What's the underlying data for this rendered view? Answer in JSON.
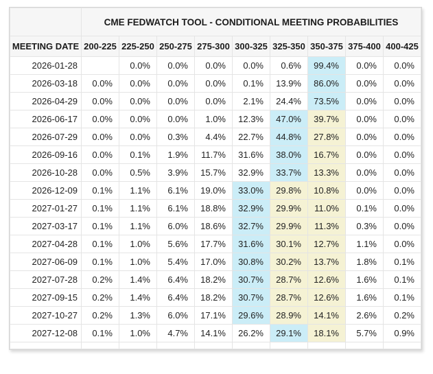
{
  "chart_data": {
    "type": "table",
    "title": "CME FEDWATCH TOOL - CONDITIONAL MEETING PROBABILITIES",
    "row_header": "MEETING DATE",
    "columns": [
      "200-225",
      "225-250",
      "250-275",
      "275-300",
      "300-325",
      "325-350",
      "350-375",
      "375-400",
      "400-425"
    ],
    "rows": [
      {
        "date": "2026-01-28",
        "values": [
          "",
          "0.0%",
          "0.0%",
          "0.0%",
          "0.0%",
          "0.6%",
          "99.4%",
          "0.0%",
          "0.0%"
        ],
        "highlights": [
          "",
          "",
          "",
          "",
          "",
          "",
          "b",
          "",
          ""
        ]
      },
      {
        "date": "2026-03-18",
        "values": [
          "0.0%",
          "0.0%",
          "0.0%",
          "0.0%",
          "0.1%",
          "13.9%",
          "86.0%",
          "0.0%",
          "0.0%"
        ],
        "highlights": [
          "",
          "",
          "",
          "",
          "",
          "",
          "b",
          "",
          ""
        ]
      },
      {
        "date": "2026-04-29",
        "values": [
          "0.0%",
          "0.0%",
          "0.0%",
          "0.0%",
          "2.1%",
          "24.4%",
          "73.5%",
          "0.0%",
          "0.0%"
        ],
        "highlights": [
          "",
          "",
          "",
          "",
          "",
          "",
          "b",
          "",
          ""
        ]
      },
      {
        "date": "2026-06-17",
        "values": [
          "0.0%",
          "0.0%",
          "0.0%",
          "1.0%",
          "12.3%",
          "47.0%",
          "39.7%",
          "0.0%",
          "0.0%"
        ],
        "highlights": [
          "",
          "",
          "",
          "",
          "",
          "b",
          "y",
          "",
          ""
        ]
      },
      {
        "date": "2026-07-29",
        "values": [
          "0.0%",
          "0.0%",
          "0.3%",
          "4.4%",
          "22.7%",
          "44.8%",
          "27.8%",
          "0.0%",
          "0.0%"
        ],
        "highlights": [
          "",
          "",
          "",
          "",
          "",
          "b",
          "y",
          "",
          ""
        ]
      },
      {
        "date": "2026-09-16",
        "values": [
          "0.0%",
          "0.1%",
          "1.9%",
          "11.7%",
          "31.6%",
          "38.0%",
          "16.7%",
          "0.0%",
          "0.0%"
        ],
        "highlights": [
          "",
          "",
          "",
          "",
          "",
          "b",
          "y",
          "",
          ""
        ]
      },
      {
        "date": "2026-10-28",
        "values": [
          "0.0%",
          "0.5%",
          "3.9%",
          "15.7%",
          "32.9%",
          "33.7%",
          "13.3%",
          "0.0%",
          "0.0%"
        ],
        "highlights": [
          "",
          "",
          "",
          "",
          "",
          "b",
          "y",
          "",
          ""
        ]
      },
      {
        "date": "2026-12-09",
        "values": [
          "0.1%",
          "1.1%",
          "6.1%",
          "19.0%",
          "33.0%",
          "29.8%",
          "10.8%",
          "0.0%",
          "0.0%"
        ],
        "highlights": [
          "",
          "",
          "",
          "",
          "b",
          "y",
          "y",
          "",
          ""
        ]
      },
      {
        "date": "2027-01-27",
        "values": [
          "0.1%",
          "1.1%",
          "6.1%",
          "18.8%",
          "32.9%",
          "29.9%",
          "11.0%",
          "0.1%",
          "0.0%"
        ],
        "highlights": [
          "",
          "",
          "",
          "",
          "b",
          "y",
          "y",
          "",
          ""
        ]
      },
      {
        "date": "2027-03-17",
        "values": [
          "0.1%",
          "1.1%",
          "6.0%",
          "18.6%",
          "32.7%",
          "29.9%",
          "11.3%",
          "0.3%",
          "0.0%"
        ],
        "highlights": [
          "",
          "",
          "",
          "",
          "b",
          "y",
          "y",
          "",
          ""
        ]
      },
      {
        "date": "2027-04-28",
        "values": [
          "0.1%",
          "1.0%",
          "5.6%",
          "17.7%",
          "31.6%",
          "30.1%",
          "12.7%",
          "1.1%",
          "0.0%"
        ],
        "highlights": [
          "",
          "",
          "",
          "",
          "b",
          "y",
          "y",
          "",
          ""
        ]
      },
      {
        "date": "2027-06-09",
        "values": [
          "0.1%",
          "1.0%",
          "5.4%",
          "17.0%",
          "30.8%",
          "30.2%",
          "13.7%",
          "1.8%",
          "0.1%"
        ],
        "highlights": [
          "",
          "",
          "",
          "",
          "b",
          "y",
          "y",
          "",
          ""
        ]
      },
      {
        "date": "2027-07-28",
        "values": [
          "0.2%",
          "1.4%",
          "6.4%",
          "18.2%",
          "30.7%",
          "28.7%",
          "12.6%",
          "1.6%",
          "0.1%"
        ],
        "highlights": [
          "",
          "",
          "",
          "",
          "b",
          "y",
          "y",
          "",
          ""
        ]
      },
      {
        "date": "2027-09-15",
        "values": [
          "0.2%",
          "1.4%",
          "6.4%",
          "18.2%",
          "30.7%",
          "28.7%",
          "12.6%",
          "1.6%",
          "0.1%"
        ],
        "highlights": [
          "",
          "",
          "",
          "",
          "b",
          "y",
          "y",
          "",
          ""
        ]
      },
      {
        "date": "2027-10-27",
        "values": [
          "0.2%",
          "1.3%",
          "6.0%",
          "17.1%",
          "29.6%",
          "28.9%",
          "14.1%",
          "2.6%",
          "0.2%"
        ],
        "highlights": [
          "",
          "",
          "",
          "",
          "b",
          "y",
          "y",
          "",
          ""
        ]
      },
      {
        "date": "2027-12-08",
        "values": [
          "0.1%",
          "1.0%",
          "4.7%",
          "14.1%",
          "26.2%",
          "29.1%",
          "18.1%",
          "5.7%",
          "0.9%"
        ],
        "highlights": [
          "",
          "",
          "",
          "",
          "",
          "b",
          "y",
          "",
          ""
        ]
      }
    ],
    "legend": {
      "highlight_blue_meaning": "highest probability in row",
      "highlight_yellow_meaning": "secondary highlighted range"
    },
    "colors": {
      "highlight_blue": "#cbedf7",
      "highlight_yellow": "#f5f2d4",
      "header_background": "#f6f6f6",
      "grid_border": "#e4e4e4",
      "text": "#222222"
    },
    "layout": {
      "grid": "on",
      "title_position": "top, spanning probability columns"
    }
  }
}
